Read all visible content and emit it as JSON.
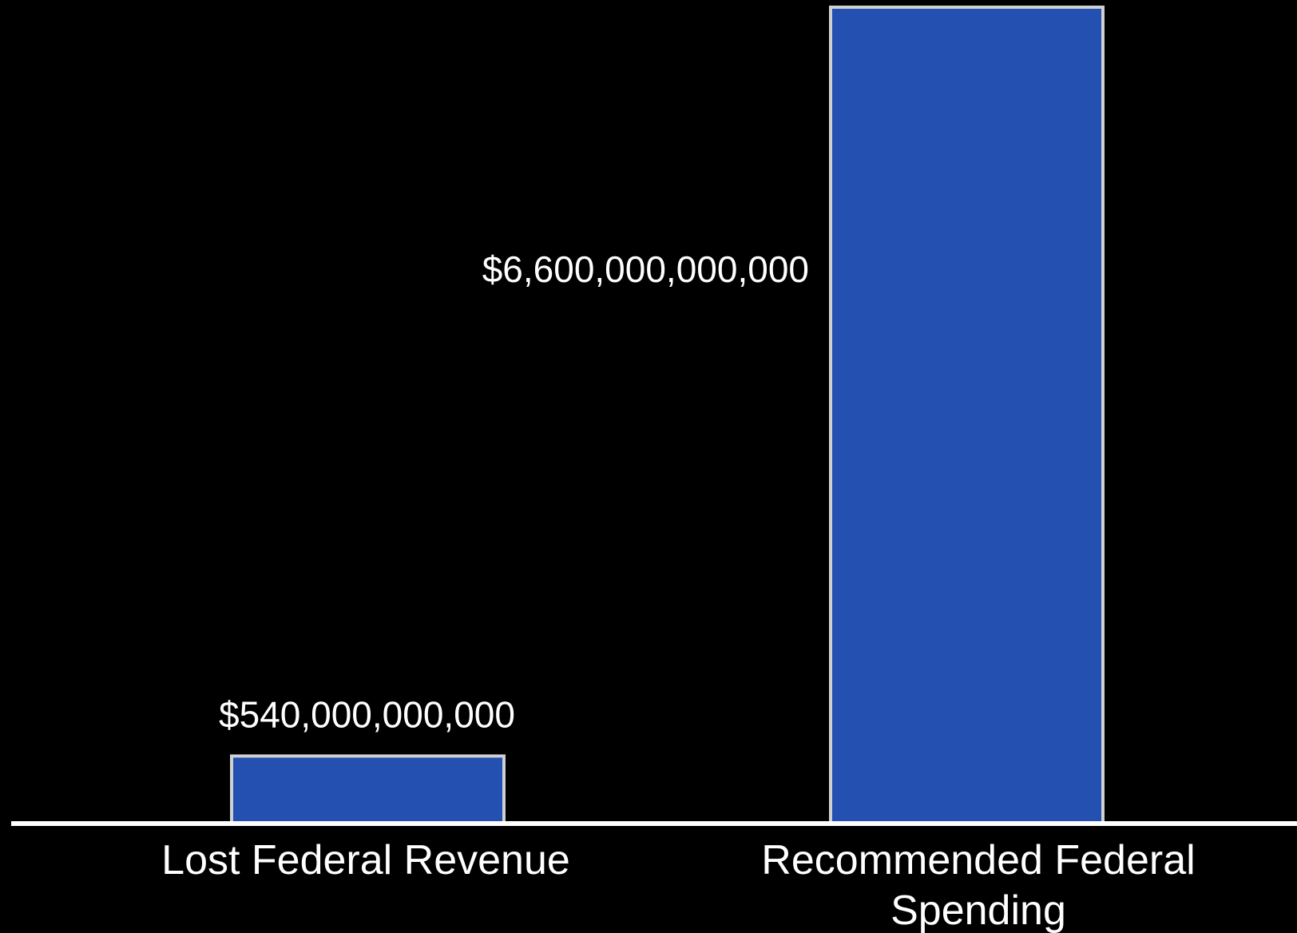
{
  "chart_data": {
    "type": "bar",
    "categories": [
      "Lost Federal Revenue",
      "Recommended Federal Spending"
    ],
    "category_lines": [
      [
        "Lost Federal Revenue"
      ],
      [
        "Recommended Federal",
        "Spending"
      ]
    ],
    "values": [
      540000000000,
      6600000000000
    ],
    "value_labels": [
      "$540,000,000,000",
      "$6,600,000,000,000"
    ],
    "title": "",
    "xlabel": "",
    "ylabel": "",
    "ylim": [
      0,
      6600000000000
    ],
    "grid": false,
    "legend": "none",
    "colors": {
      "background": "#000000",
      "bar_fill": "#2350b1",
      "bar_border": "#d0d0d0",
      "axis_line": "#ffffff",
      "text": "#ffffff"
    }
  }
}
